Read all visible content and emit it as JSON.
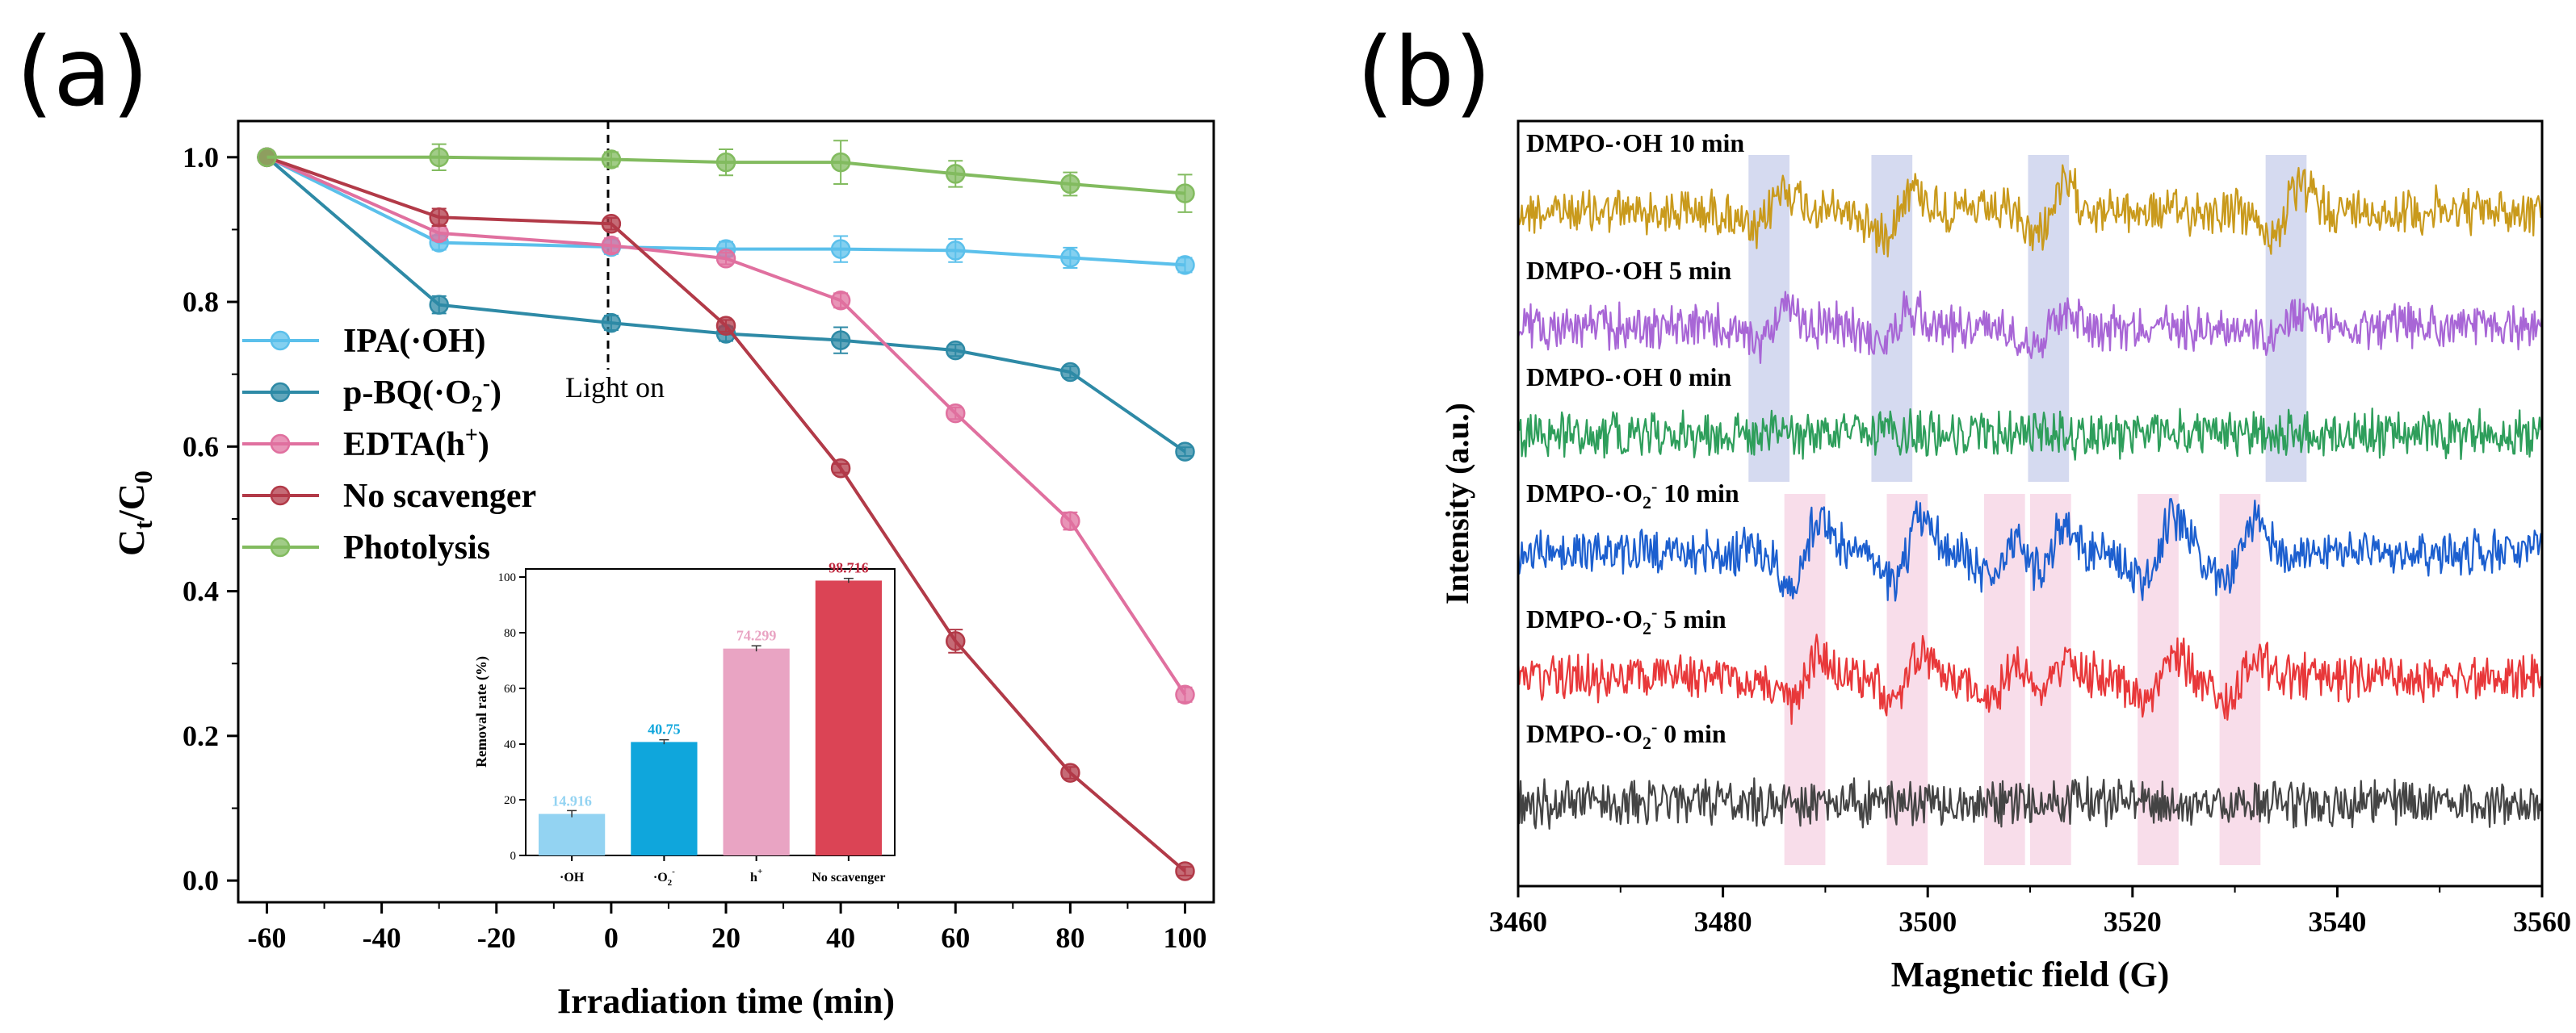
{
  "panel_a": {
    "label": "(a)",
    "annotation": "Light on",
    "chart_data": {
      "type": "line",
      "xlabel": "Irradiation time (min)",
      "ylabel_main": "C",
      "ylabel_sub_t": "t",
      "ylabel_slash": "/C",
      "ylabel_sub_0": "0",
      "xlim": [
        -65,
        105
      ],
      "ylim": [
        -0.03,
        1.05
      ],
      "xticks": [
        -60,
        -40,
        -20,
        0,
        20,
        40,
        60,
        80,
        100
      ],
      "xtick_labels": [
        "-60",
        "-40",
        "-20",
        "0",
        "20",
        "40",
        "60",
        "80",
        "100"
      ],
      "yticks": [
        0.0,
        0.2,
        0.4,
        0.6,
        0.8,
        1.0
      ],
      "ytick_labels": [
        "0.0",
        "0.2",
        "0.4",
        "0.6",
        "0.8",
        "1.0"
      ],
      "x": [
        -60,
        -30,
        0,
        20,
        40,
        60,
        80,
        100
      ],
      "series": [
        {
          "name": "IPA(·OH)",
          "legend_main": "IPA(·OH)",
          "legend_sub": "",
          "legend_sup": "",
          "legend_tail": "",
          "color": "#5bc0eb",
          "values": [
            1.0,
            0.882,
            0.876,
            0.873,
            0.873,
            0.871,
            0.861,
            0.851
          ],
          "errors": [
            0,
            0.01,
            0.01,
            0.01,
            0.018,
            0.016,
            0.014,
            0.01
          ]
        },
        {
          "name": "p-BQ(·O2-)",
          "legend_main": "p-BQ(·O",
          "legend_sub": "2",
          "legend_sup": "-",
          "legend_tail": ")",
          "color": "#2e8aa6",
          "values": [
            1.0,
            0.796,
            0.771,
            0.756,
            0.747,
            0.733,
            0.703,
            0.593
          ],
          "errors": [
            0,
            0.012,
            0.01,
            0.01,
            0.018,
            0.008,
            0.008,
            0.006
          ]
        },
        {
          "name": "EDTA(h+)",
          "legend_main": "EDTA(h",
          "legend_sub": "",
          "legend_sup": "+",
          "legend_tail": ")",
          "color": "#e0709f",
          "values": [
            1.0,
            0.895,
            0.878,
            0.86,
            0.802,
            0.646,
            0.497,
            0.257
          ],
          "errors": [
            0,
            0.01,
            0.01,
            0.008,
            0.01,
            0.008,
            0.012,
            0.01
          ]
        },
        {
          "name": "No scavenger",
          "legend_main": "No scavenger",
          "legend_sub": "",
          "legend_sup": "",
          "legend_tail": "",
          "color": "#b23a48",
          "values": [
            1.0,
            0.917,
            0.908,
            0.767,
            0.57,
            0.331,
            0.149,
            0.013
          ],
          "errors": [
            0,
            0.012,
            0.008,
            0.008,
            0.006,
            0.016,
            0.008,
            0.006
          ]
        },
        {
          "name": "Photolysis",
          "legend_main": "Photolysis",
          "legend_sub": "",
          "legend_sup": "",
          "legend_tail": "",
          "color": "#82bb5f",
          "values": [
            1.0,
            1.0,
            0.997,
            0.993,
            0.993,
            0.977,
            0.963,
            0.95
          ],
          "errors": [
            0,
            0.018,
            0.01,
            0.018,
            0.03,
            0.018,
            0.016,
            0.026
          ]
        }
      ],
      "inset": {
        "type": "bar",
        "ylabel": "Removal rate (%)",
        "ylim": [
          0,
          100
        ],
        "yticks": [
          0,
          20,
          40,
          60,
          80,
          100
        ],
        "ytick_labels": [
          "0",
          "20",
          "40",
          "60",
          "80",
          "100"
        ],
        "categories": [
          "·OH",
          "·O2-",
          "h+",
          "No scavenger"
        ],
        "category_labels": [
          {
            "main": "·OH",
            "sub": "",
            "sup": ""
          },
          {
            "main": "·O",
            "sub": "2",
            "sup": "-"
          },
          {
            "main": "h",
            "sub": "",
            "sup": "+"
          },
          {
            "main": "No scavenger",
            "sub": "",
            "sup": ""
          }
        ],
        "values": [
          14.916,
          40.75,
          74.299,
          98.716
        ],
        "value_labels": [
          "14.916",
          "40.75",
          "74.299",
          "98.716"
        ],
        "errors": [
          1.2,
          0.8,
          1.0,
          0.8
        ],
        "colors": [
          "#93d3f2",
          "#0fa6dc",
          "#e9a4c3",
          "#db4455"
        ],
        "label_colors": [
          "#93d3f2",
          "#0fa6dc",
          "#e9a4c3",
          "#c0283f"
        ]
      }
    }
  },
  "panel_b": {
    "label": "(b)",
    "chart_data": {
      "type": "line",
      "xlabel": "Magnetic field (G)",
      "ylabel": "Intensity (a.u.)",
      "xlim": [
        3460,
        3560
      ],
      "xticks": [
        3460,
        3480,
        3500,
        3520,
        3540,
        3560
      ],
      "xtick_labels": [
        "3460",
        "3480",
        "3500",
        "3520",
        "3540",
        "3560"
      ],
      "traces": [
        {
          "label_main": "DMPO-·OH 10 min",
          "label_sub": "",
          "label_sup": "",
          "label_tail": "",
          "color": "#c99a1c",
          "baseline": 6,
          "peaks": [
            [
              3484.5,
              1
            ],
            [
              3497,
              1
            ],
            [
              3512,
              1
            ],
            [
              3535,
              1
            ]
          ]
        },
        {
          "label_main": "DMPO-·OH 5 min",
          "label_sub": "",
          "label_sup": "",
          "label_tail": "",
          "color": "#a866d6",
          "baseline": 5,
          "peaks": [
            [
              3484.5,
              0.7
            ],
            [
              3497,
              0.7
            ],
            [
              3512,
              0.7
            ],
            [
              3535,
              0.7
            ]
          ]
        },
        {
          "label_main": "DMPO-·OH 0 min",
          "label_sub": "",
          "label_sup": "",
          "label_tail": "",
          "color": "#2e9e5b",
          "baseline": 4,
          "peaks": []
        },
        {
          "label_main": "DMPO-·O",
          "label_sub": "2",
          "label_sup": "-",
          "label_tail": " 10 min",
          "color": "#1c5fcf",
          "baseline": 3,
          "peaks": [
            [
              3488,
              1.4
            ],
            [
              3498,
              1.4
            ],
            [
              3507.5,
              1.2
            ],
            [
              3512,
              1.2
            ],
            [
              3522.5,
              1.4
            ],
            [
              3530.5,
              1.2
            ]
          ]
        },
        {
          "label_main": "DMPO-·O",
          "label_sub": "2",
          "label_sup": "-",
          "label_tail": " 5 min",
          "color": "#e8383a",
          "baseline": 2,
          "peaks": [
            [
              3488,
              1.0
            ],
            [
              3498,
              1.0
            ],
            [
              3507.5,
              0.9
            ],
            [
              3512,
              0.9
            ],
            [
              3522.5,
              1.0
            ],
            [
              3530.5,
              0.9
            ]
          ]
        },
        {
          "label_main": "DMPO-·O",
          "label_sub": "2",
          "label_sup": "-",
          "label_tail": " 0 min",
          "color": "#444444",
          "baseline": 1,
          "peaks": []
        }
      ],
      "highlight_oh": [
        [
          3482.5,
          3486.5
        ],
        [
          3494.5,
          3498.5
        ],
        [
          3509.8,
          3513.8
        ],
        [
          3533,
          3537
        ]
      ],
      "highlight_o2": [
        [
          3486,
          3490
        ],
        [
          3496,
          3500
        ],
        [
          3505.5,
          3509.5
        ],
        [
          3510,
          3514
        ],
        [
          3520.5,
          3524.5
        ],
        [
          3528.5,
          3532.5
        ]
      ],
      "highlight_oh_color": "#b9c2e6",
      "highlight_o2_color": "#f3c7dc"
    }
  }
}
